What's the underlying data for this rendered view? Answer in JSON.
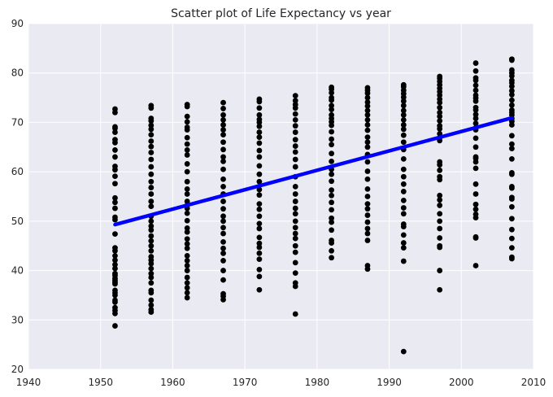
{
  "chart_data": {
    "type": "scatter",
    "title": "Scatter plot of Life Expectancy vs year",
    "xlabel": "",
    "ylabel": "",
    "xlim": [
      1940,
      2010
    ],
    "ylim": [
      20,
      90
    ],
    "xticks": [
      1940,
      1950,
      1960,
      1970,
      1980,
      1990,
      2000,
      2010
    ],
    "yticks": [
      20,
      30,
      40,
      50,
      60,
      70,
      80,
      90
    ],
    "grid": true,
    "background": "#eaeaf2",
    "grid_color": "#ffffff",
    "point_color": "#000000",
    "line_color": "#0000ff",
    "series": [
      {
        "type": "scatter",
        "points": [
          {
            "x": 1952,
            "y": [
              28.8,
              31.3,
              31.9,
              32.5,
              33.6,
              34.0,
              35.0,
              35.5,
              36.0,
              37.3,
              37.6,
              38.0,
              38.4,
              39.0,
              39.4,
              40.4,
              41.2,
              42.1,
              43.0,
              44.0,
              44.6,
              47.4,
              50.3,
              50.8,
              52.6,
              53.8,
              54.7,
              57.6,
              59.1,
              60.4,
              61.1,
              63.0,
              64.4,
              65.9,
              66.5,
              68.0,
              68.8,
              69.1,
              72.0,
              72.7
            ]
          },
          {
            "x": 1957,
            "y": [
              31.6,
              32.1,
              33.0,
              34.0,
              35.5,
              36.0,
              37.5,
              38.6,
              39.4,
              40.4,
              41.4,
              42.1,
              42.8,
              44.0,
              45.0,
              46.0,
              47.0,
              48.2,
              49.0,
              50.0,
              51.0,
              53.0,
              54.0,
              55.5,
              56.8,
              58.0,
              59.5,
              61.0,
              62.5,
              63.9,
              65.1,
              66.2,
              67.5,
              68.6,
              69.4,
              70.3,
              70.8,
              72.9,
              73.4
            ]
          },
          {
            "x": 1962,
            "y": [
              34.5,
              35.5,
              36.5,
              37.5,
              38.6,
              40.0,
              41.0,
              42.0,
              43.0,
              44.5,
              45.4,
              46.4,
              47.8,
              48.6,
              50.1,
              51.6,
              52.6,
              53.2,
              54.0,
              55.5,
              56.5,
              58.0,
              60.0,
              61.6,
              63.4,
              64.4,
              65.6,
              66.9,
              68.5,
              69.0,
              70.1,
              71.2,
              73.2,
              73.6
            ]
          },
          {
            "x": 1967,
            "y": [
              34.1,
              34.8,
              35.3,
              38.1,
              40.0,
              42.0,
              43.5,
              44.5,
              45.8,
              47.5,
              48.7,
              50.0,
              51.0,
              52.5,
              54.0,
              55.5,
              57.0,
              58.5,
              60.5,
              62.1,
              63.0,
              64.5,
              66.0,
              67.5,
              68.5,
              69.5,
              70.5,
              71.5,
              72.8,
              74.0
            ]
          },
          {
            "x": 1972,
            "y": [
              36.1,
              38.8,
              40.2,
              42.3,
              43.5,
              44.7,
              45.5,
              46.7,
              48.5,
              49.5,
              51.0,
              52.4,
              53.5,
              55.3,
              56.4,
              58.0,
              59.5,
              61.2,
              63.0,
              64.3,
              65.8,
              67.0,
              68.0,
              69.2,
              70.0,
              70.6,
              71.5,
              72.9,
              74.2,
              74.7
            ]
          },
          {
            "x": 1977,
            "y": [
              31.2,
              36.8,
              37.5,
              39.5,
              41.6,
              43.7,
              45.0,
              46.5,
              47.5,
              48.7,
              50.0,
              51.5,
              52.6,
              54.0,
              55.5,
              57.0,
              59.0,
              61.0,
              62.5,
              64.0,
              65.2,
              66.5,
              68.0,
              69.3,
              70.5,
              71.7,
              72.9,
              73.6,
              74.4,
              75.4
            ]
          },
          {
            "x": 1982,
            "y": [
              42.6,
              44.0,
              45.6,
              46.1,
              48.2,
              49.8,
              50.6,
              52.3,
              53.8,
              55.2,
              56.3,
              58.1,
              59.5,
              60.5,
              62.1,
              63.7,
              65.5,
              66.6,
              68.1,
              69.4,
              70.1,
              70.8,
              71.5,
              72.6,
              73.4,
              74.5,
              75.0,
              76.0,
              76.7,
              77.1
            ]
          },
          {
            "x": 1987,
            "y": [
              40.3,
              41.0,
              46.1,
              47.5,
              48.5,
              49.8,
              51.2,
              52.5,
              53.5,
              55.0,
              56.5,
              58.5,
              60.1,
              62.0,
              63.5,
              65.0,
              66.0,
              67.0,
              68.4,
              69.5,
              70.5,
              71.5,
              72.4,
              73.3,
              74.1,
              75.0,
              75.9,
              76.5,
              77.0
            ]
          },
          {
            "x": 1992,
            "y": [
              23.6,
              41.9,
              44.6,
              45.6,
              47.2,
              48.9,
              49.4,
              51.5,
              52.7,
              54.2,
              56.0,
              57.5,
              59.0,
              60.5,
              62.6,
              64.5,
              66.0,
              67.4,
              68.6,
              69.5,
              70.5,
              71.5,
              72.4,
              73.4,
              74.3,
              75.1,
              75.8,
              76.5,
              77.2,
              77.6
            ]
          },
          {
            "x": 1997,
            "y": [
              36.1,
              40.0,
              44.7,
              45.0,
              46.6,
              48.5,
              50.0,
              51.5,
              53.2,
              54.3,
              55.2,
              58.4,
              59.0,
              60.3,
              61.4,
              62.0,
              66.3,
              66.9,
              67.7,
              68.7,
              69.3,
              70.3,
              71.2,
              72.0,
              73.0,
              74.0,
              74.7,
              75.5,
              76.2,
              76.9,
              77.6,
              78.3,
              78.9,
              79.3
            ]
          },
          {
            "x": 2002,
            "y": [
              41.0,
              46.6,
              46.8,
              50.7,
              51.4,
              52.4,
              53.4,
              55.5,
              57.5,
              60.7,
              62.0,
              62.7,
              63.0,
              65.0,
              66.8,
              68.5,
              68.9,
              69.8,
              70.8,
              71.6,
              72.5,
              73.0,
              74.3,
              74.9,
              75.5,
              76.5,
              77.5,
              78.5,
              79.0,
              80.4,
              82.0
            ]
          },
          {
            "x": 2007,
            "y": [
              42.4,
              42.7,
              44.6,
              46.5,
              48.3,
              50.5,
              52.9,
              54.5,
              54.8,
              56.7,
              57.0,
              59.5,
              59.8,
              62.6,
              64.7,
              65.6,
              67.3,
              69.5,
              70.2,
              70.8,
              71.5,
              72.0,
              72.5,
              73.5,
              74.5,
              75.6,
              76.4,
              77.3,
              78.0,
              78.5,
              79.4,
              80.0,
              80.6,
              82.6,
              82.8
            ]
          }
        ]
      },
      {
        "type": "line",
        "points": [
          [
            1952,
            49.3
          ],
          [
            2007,
            70.9
          ]
        ]
      }
    ]
  }
}
